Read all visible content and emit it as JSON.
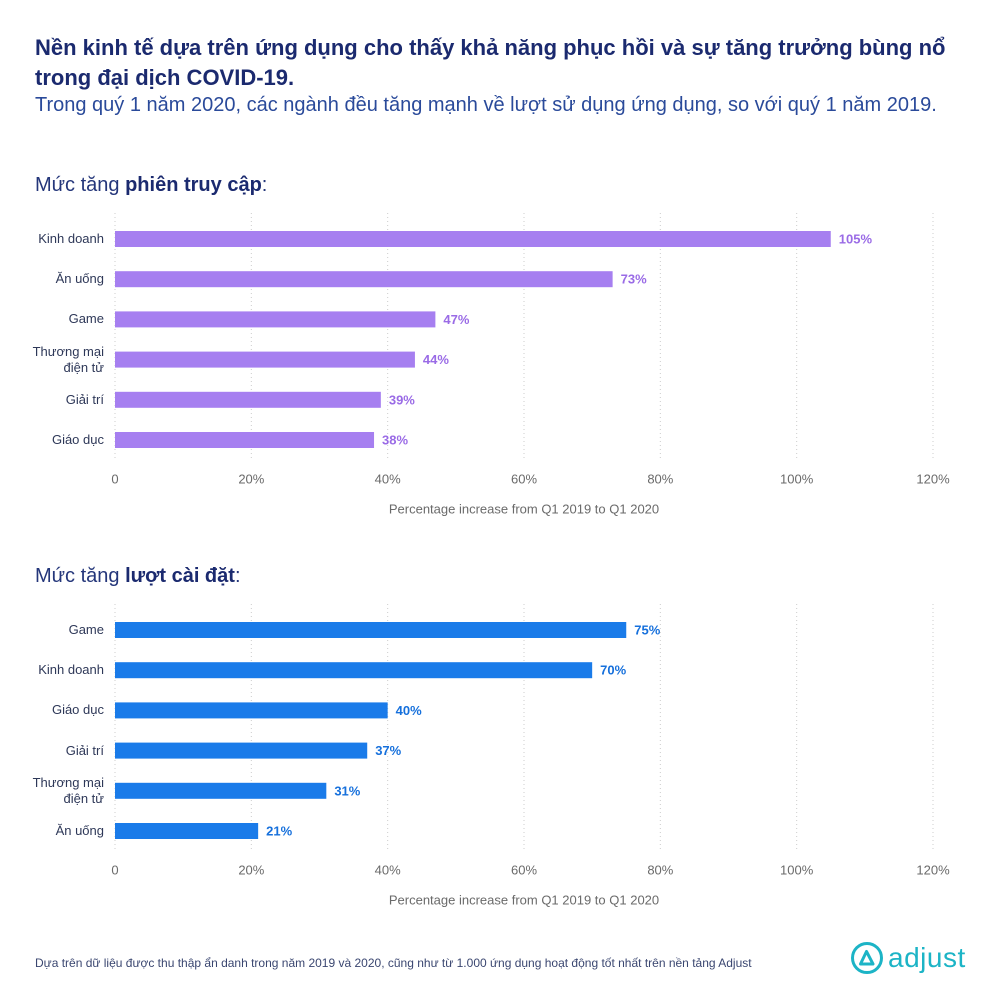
{
  "header": {
    "title": "Nền kinh tế dựa trên ứng dụng cho thấy khả năng phục hồi và sự tăng trưởng bùng nổ trong đại dịch COVID-19.",
    "subtitle": "Trong quý 1 năm 2020, các ngành đều tăng mạnh về lượt sử dụng ứng dụng, so với quý 1 năm 2019."
  },
  "chart_data": [
    {
      "type": "bar",
      "orientation": "horizontal",
      "title_prefix": "Mức tăng ",
      "title_emphasis": "phiên truy cập",
      "title_suffix": ":",
      "categories": [
        "Kinh doanh",
        "Ăn uống",
        "Game",
        "Thương mại điện tử",
        "Giải trí",
        "Giáo dục"
      ],
      "values": [
        105,
        73,
        47,
        44,
        39,
        38
      ],
      "labels": [
        "105%",
        "73%",
        "47%",
        "44%",
        "39%",
        "38%"
      ],
      "xlabel": "Percentage increase from Q1 2019 to Q1 2020",
      "xlim": [
        0,
        120
      ],
      "ticks": [
        0,
        20,
        40,
        60,
        80,
        100,
        120
      ],
      "tick_labels": [
        "0",
        "20%",
        "40%",
        "60%",
        "80%",
        "100%",
        "120%"
      ],
      "grid": true,
      "colors": {
        "bar": "#a67ff0",
        "label": "#9a6be6"
      }
    },
    {
      "type": "bar",
      "orientation": "horizontal",
      "title_prefix": "Mức tăng ",
      "title_emphasis": "lượt cài đặt",
      "title_suffix": ":",
      "categories": [
        "Game",
        "Kinh doanh",
        "Giáo dục",
        "Giải trí",
        "Thương mại điện tử",
        "Ăn uống"
      ],
      "values": [
        75,
        70,
        40,
        37,
        31,
        21
      ],
      "labels": [
        "75%",
        "70%",
        "40%",
        "37%",
        "31%",
        "21%"
      ],
      "xlabel": "Percentage increase from Q1 2019 to Q1 2020",
      "xlim": [
        0,
        120
      ],
      "ticks": [
        0,
        20,
        40,
        60,
        80,
        100,
        120
      ],
      "tick_labels": [
        "0",
        "20%",
        "40%",
        "60%",
        "80%",
        "100%",
        "120%"
      ],
      "grid": true,
      "colors": {
        "bar": "#1a7be9",
        "label": "#1670dc"
      }
    }
  ],
  "footer": {
    "note": "Dựa trên dữ liệu được thu thập ẩn danh trong năm 2019 và 2020, cũng như từ 1.000 ứng dụng hoạt động tốt nhất trên nền tảng Adjust",
    "logo_text": "adjust",
    "logo_icon": "adjust-logo-icon",
    "brand_color": "#1cb4c6"
  }
}
